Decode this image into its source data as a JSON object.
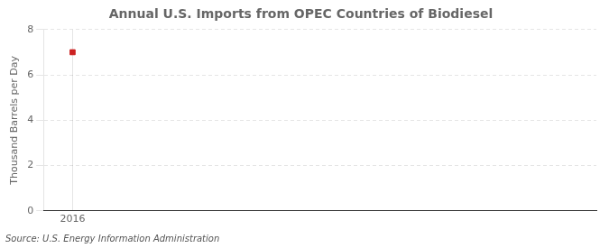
{
  "chart_data": {
    "type": "scatter",
    "title": "Annual U.S. Imports from OPEC Countries of Biodiesel",
    "ylabel": "Thousand Barrels per Day",
    "source": "Source: U.S. Energy Information Administration",
    "x": [
      2016
    ],
    "values": [
      7.0
    ],
    "color": "#cc2222",
    "marker": "square",
    "xlim": [
      2015.5,
      2025
    ],
    "ylim": [
      0,
      8
    ],
    "xticks": [
      2016
    ],
    "yticks": [
      0,
      2,
      4,
      6,
      8
    ],
    "grid": true
  }
}
